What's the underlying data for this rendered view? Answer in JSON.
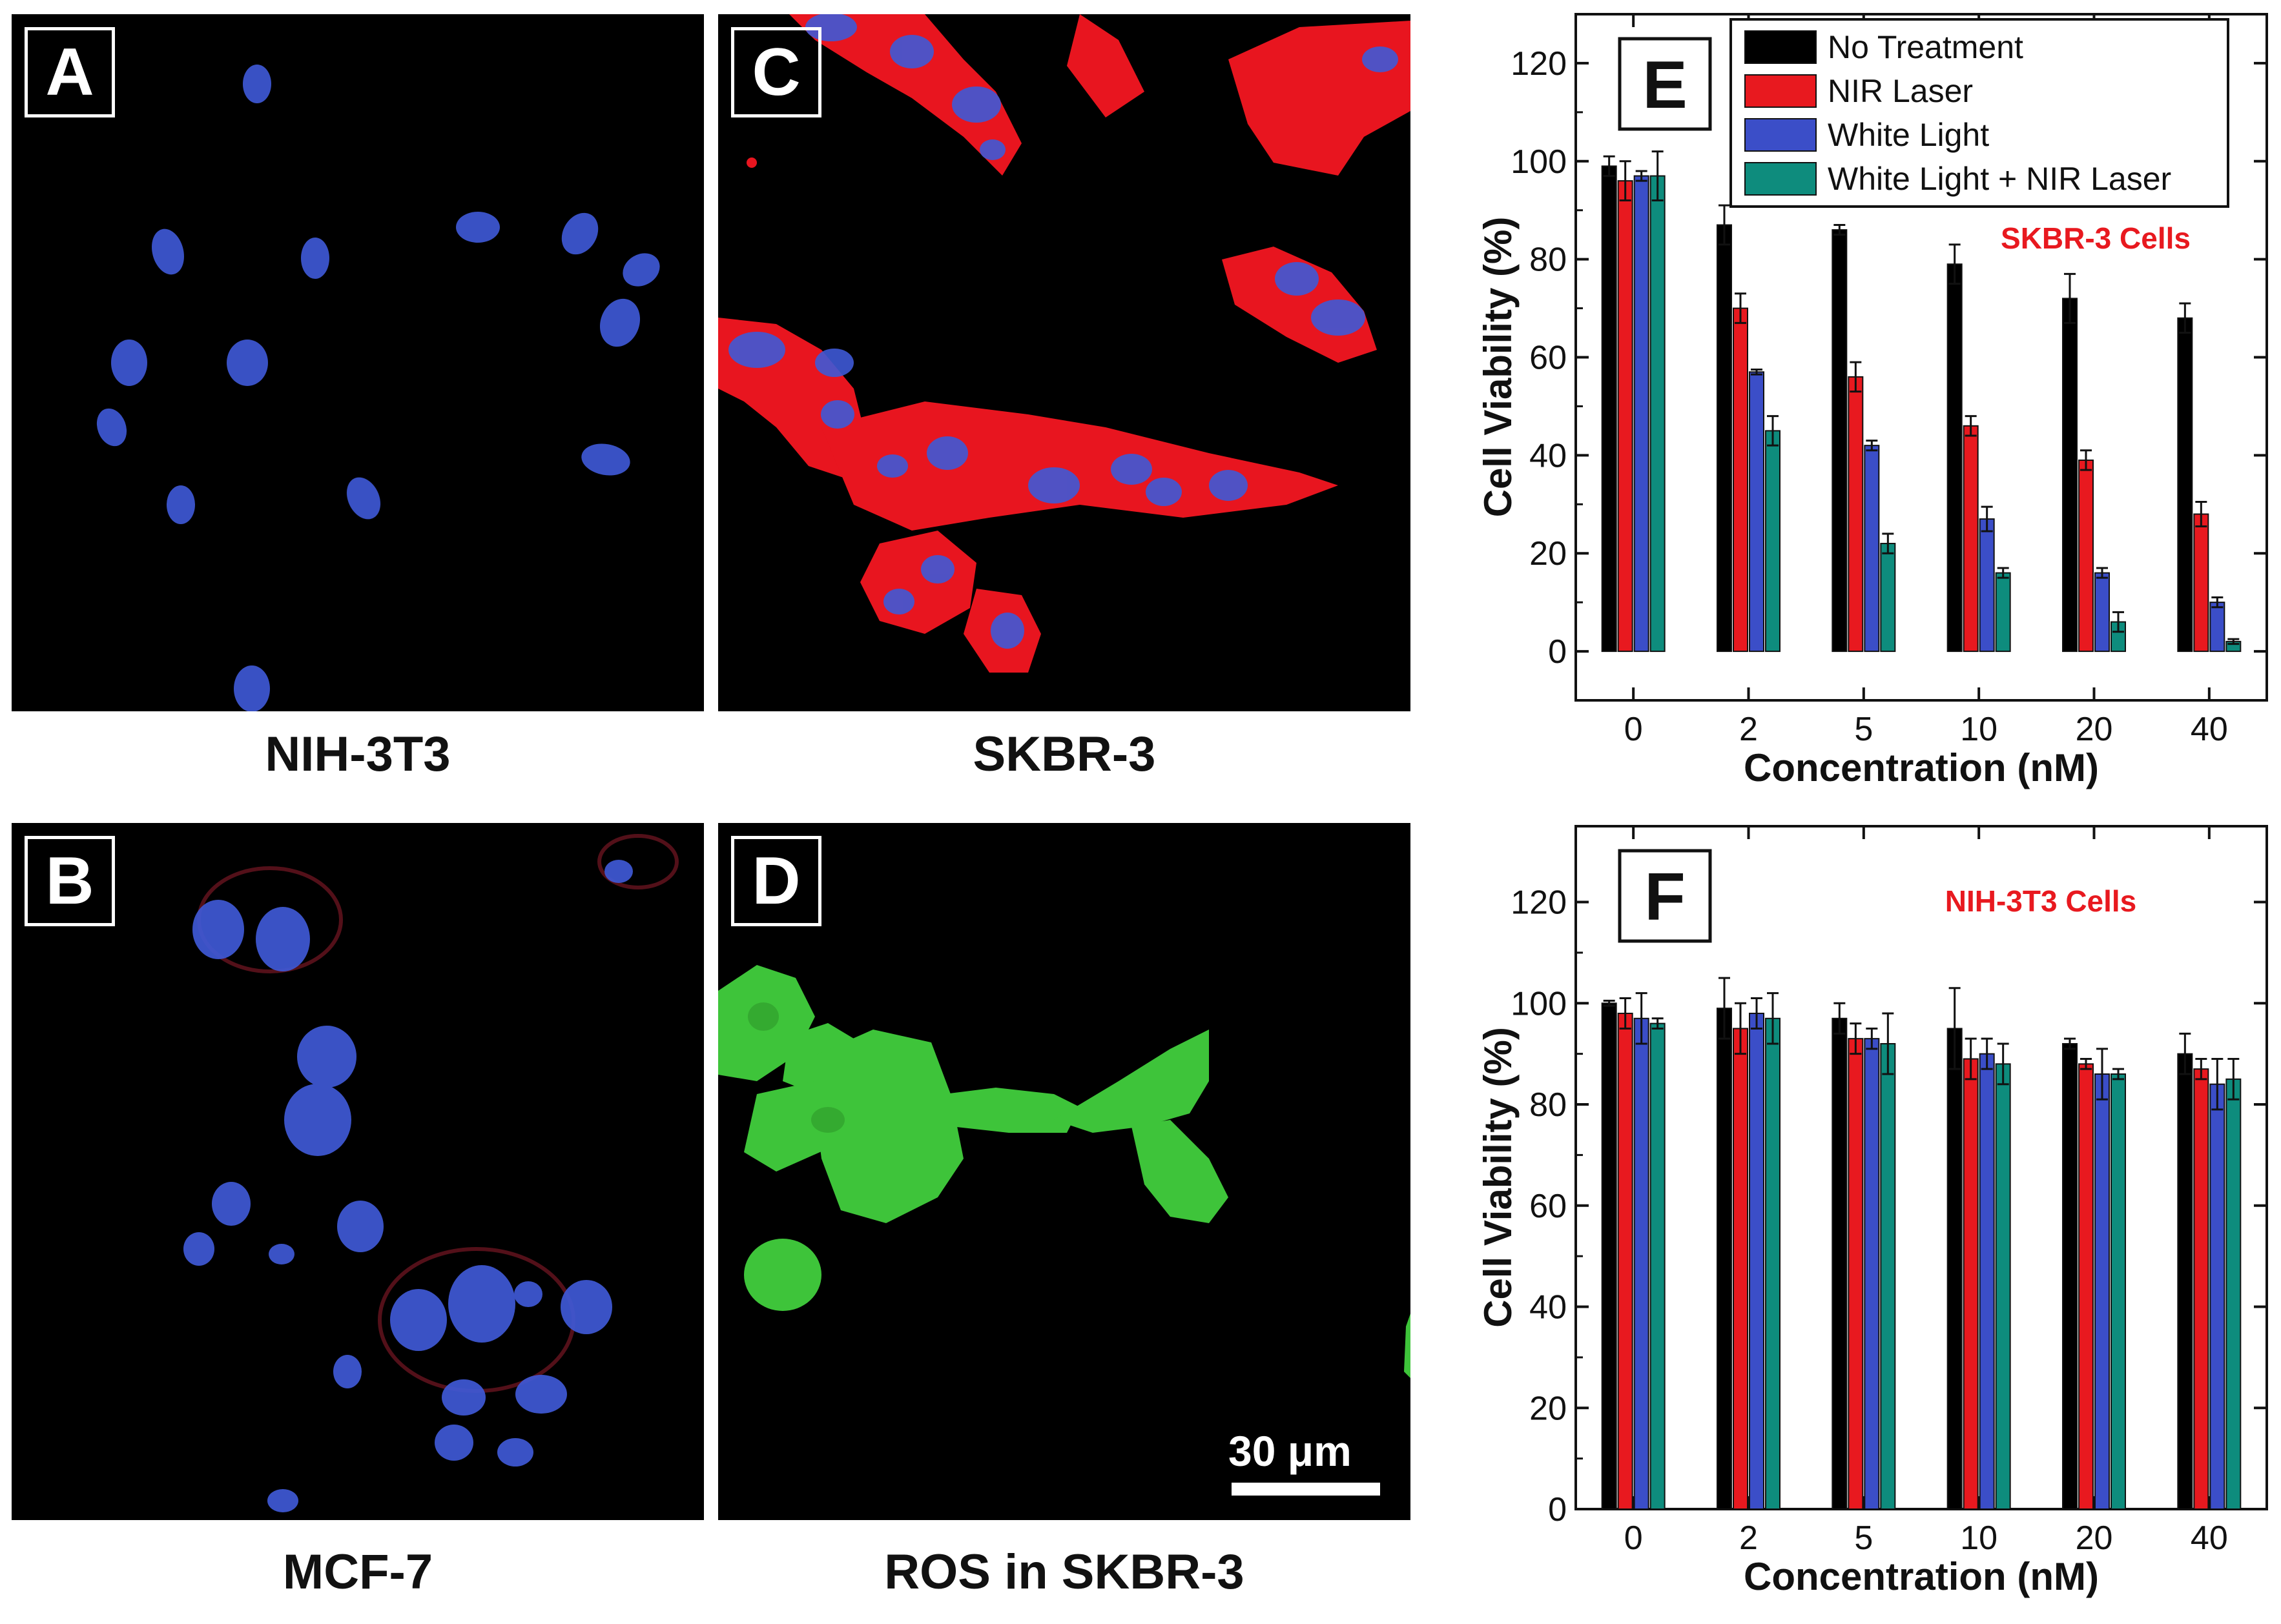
{
  "panels": {
    "A": {
      "letter": "A",
      "caption": "NIH-3T3"
    },
    "B": {
      "letter": "B",
      "caption": "MCF-7"
    },
    "C": {
      "letter": "C",
      "caption": "SKBR-3"
    },
    "D": {
      "letter": "D",
      "caption": "ROS in SKBR-3",
      "scalebar_label": "30 μm"
    }
  },
  "colors": {
    "nucleus_blue": "#3f59d6",
    "cytoplasm_red": "#e8151f",
    "ros_green": "#3ec43a",
    "no_treatment": "#000000",
    "nir_laser": "#e8191f",
    "white_light": "#3b4ec8",
    "white_light_nir": "#0e8c7d"
  },
  "chart_data": [
    {
      "panel_letter": "E",
      "type": "bar",
      "annotation": "SKBR-3 Cells",
      "xlabel": "Concentration (nM)",
      "ylabel": "Cell Viability (%)",
      "categories": [
        "0",
        "2",
        "5",
        "10",
        "20",
        "40"
      ],
      "ylim": [
        -10,
        130
      ],
      "yticks": [
        0,
        20,
        40,
        60,
        80,
        100,
        120
      ],
      "legend_position": "top-right",
      "series": [
        {
          "name": "No Treatment",
          "values": [
            99,
            87,
            86,
            79,
            72,
            68
          ],
          "errors": [
            2,
            4,
            1,
            4,
            5,
            3
          ]
        },
        {
          "name": "NIR Laser",
          "values": [
            96,
            70,
            56,
            46,
            39,
            28
          ],
          "errors": [
            4,
            3,
            3,
            2,
            2,
            2.5
          ]
        },
        {
          "name": "White Light",
          "values": [
            97,
            57,
            42,
            27,
            16,
            10
          ],
          "errors": [
            1,
            0.5,
            1,
            2.5,
            1,
            1
          ]
        },
        {
          "name": "White Light + NIR Laser",
          "values": [
            97,
            45,
            22,
            16,
            6,
            2
          ],
          "errors": [
            5,
            3,
            2,
            1,
            2,
            0.5
          ]
        }
      ]
    },
    {
      "panel_letter": "F",
      "type": "bar",
      "annotation": "NIH-3T3 Cells",
      "xlabel": "Concentration (nM)",
      "ylabel": "Cell Viability (%)",
      "categories": [
        "0",
        "2",
        "5",
        "10",
        "20",
        "40"
      ],
      "ylim": [
        0,
        135
      ],
      "yticks": [
        0,
        20,
        40,
        60,
        80,
        100,
        120
      ],
      "series": [
        {
          "name": "No Treatment",
          "values": [
            100,
            99,
            97,
            95,
            92,
            90
          ],
          "errors": [
            0.5,
            6,
            3,
            8,
            1,
            4
          ]
        },
        {
          "name": "NIR Laser",
          "values": [
            98,
            95,
            93,
            89,
            88,
            87
          ],
          "errors": [
            3,
            5,
            3,
            4,
            1,
            2
          ]
        },
        {
          "name": "White Light",
          "values": [
            97,
            98,
            93,
            90,
            86,
            84
          ],
          "errors": [
            5,
            3,
            2,
            3,
            5,
            5
          ]
        },
        {
          "name": "White Light + NIR Laser",
          "values": [
            96,
            97,
            92,
            88,
            86,
            85
          ],
          "errors": [
            1,
            5,
            6,
            4,
            1,
            4
          ]
        }
      ]
    }
  ]
}
